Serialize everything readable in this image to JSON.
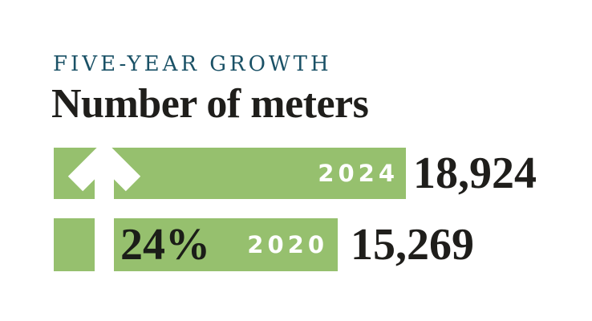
{
  "header": {
    "eyebrow": "FIVE-YEAR GROWTH",
    "title": "Number of meters"
  },
  "chart_data": {
    "type": "bar",
    "orientation": "horizontal",
    "subtitle": "FIVE-YEAR GROWTH",
    "title": "Number of meters",
    "categories": [
      "2024",
      "2020"
    ],
    "values": [
      18924,
      15269
    ],
    "rows": [
      {
        "year": "2024",
        "value": 18924,
        "value_label": "18,924"
      },
      {
        "year": "2020",
        "value": 15269,
        "value_label": "15,269"
      }
    ],
    "growth_label": "24%",
    "xlim": [
      0,
      18924
    ],
    "grid": "off",
    "legend": "none",
    "annotation": "white up arrow through both bars indicating growth",
    "bar_color": "#96C06E"
  },
  "icons": {
    "growth_arrow": "up-arrow"
  },
  "colors": {
    "background": "#FFFFFF",
    "bar_green": "#96C06E",
    "eyebrow_teal": "#1A5166",
    "text_dark": "#1F1E1B",
    "pct_dark": "#1B1D18",
    "on_bar_text": "#FFFFFF",
    "arrow_white": "#FFFFFF"
  }
}
